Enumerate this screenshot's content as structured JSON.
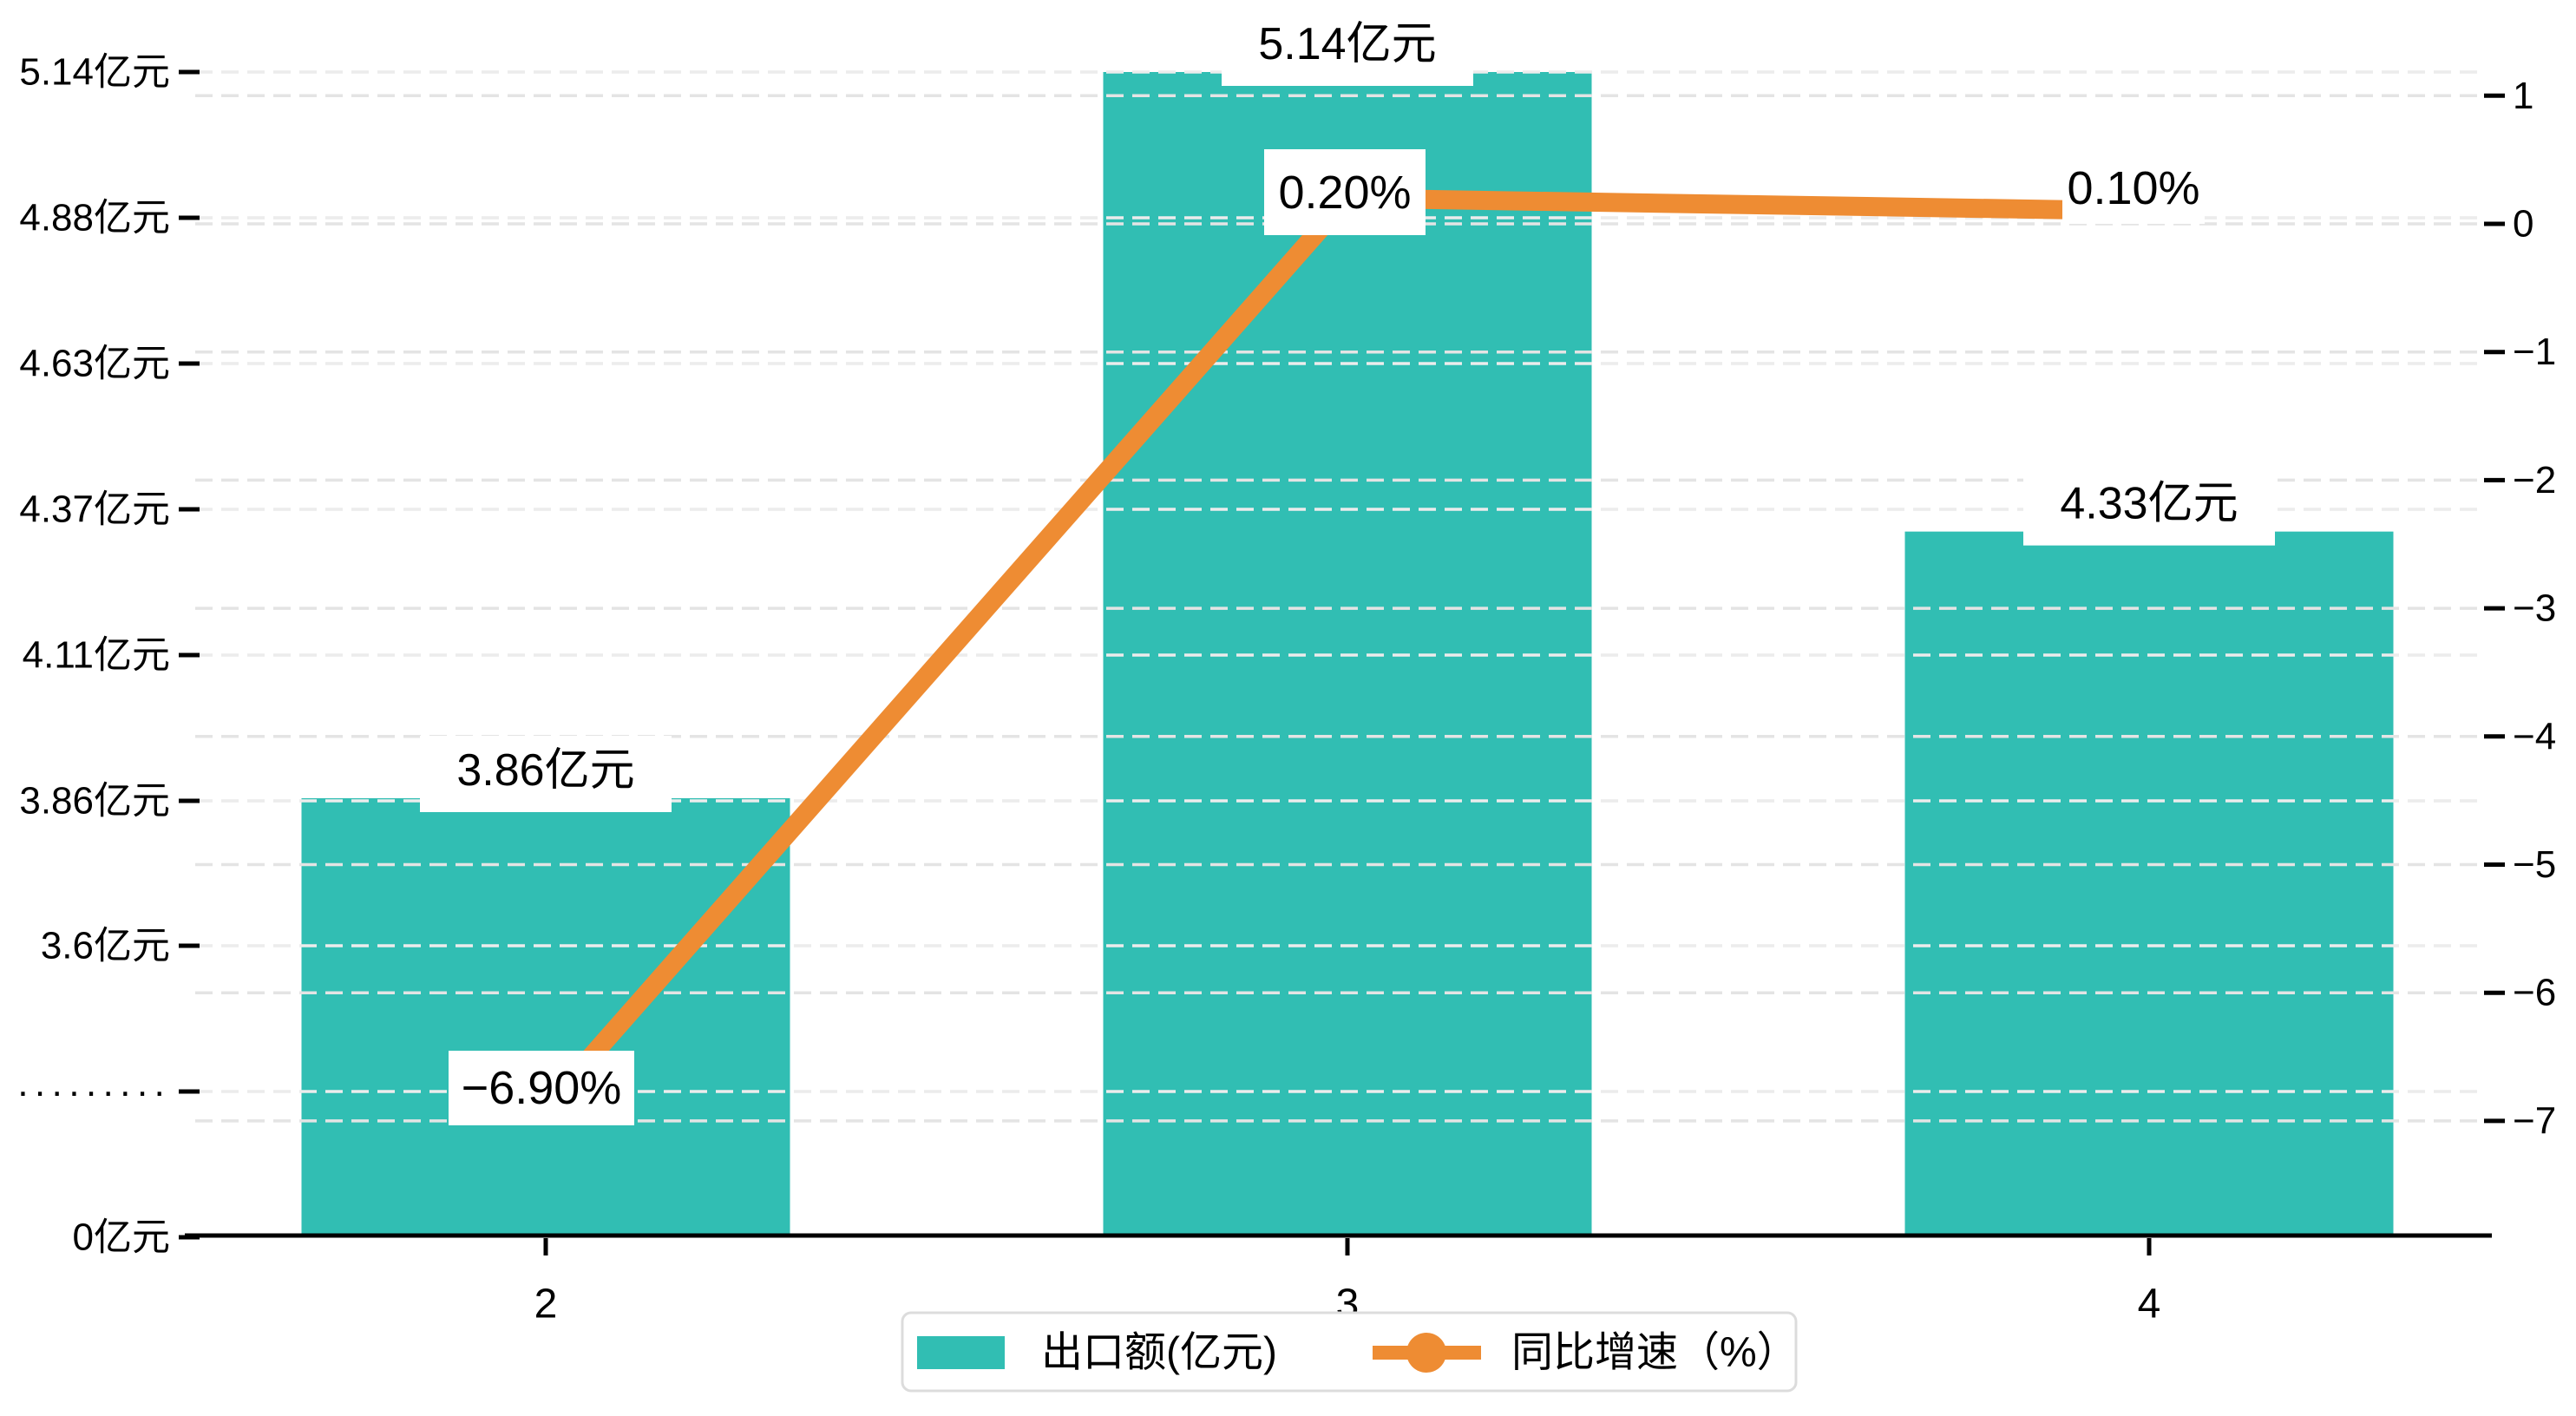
{
  "chart_data": {
    "type": "bar",
    "subtype": "bar-line-combo",
    "categories": [
      "2",
      "3",
      "4"
    ],
    "series": [
      {
        "name": "出口额(亿元)",
        "chart_type": "bar",
        "axis": "left",
        "values": [
          3.86,
          5.14,
          4.33
        ],
        "point_labels": [
          "3.86亿元",
          "5.14亿元",
          "4.33亿元"
        ],
        "color": "#31beb3"
      },
      {
        "name": "同比增速（%）",
        "chart_type": "line",
        "axis": "right",
        "values": [
          -6.9,
          0.2,
          0.1
        ],
        "point_labels": [
          "−6.90%",
          "0.20%",
          "0.10%"
        ],
        "color": "#ee8c33"
      }
    ],
    "left_axis": {
      "unit": "亿元",
      "has_break": true,
      "ticks": [
        "5.14亿元",
        "4.88亿元",
        "4.63亿元",
        "4.37亿元",
        "4.11亿元",
        "3.86亿元",
        "3.6亿元",
        "·········",
        "0亿元"
      ]
    },
    "right_axis": {
      "ticks": [
        "1",
        "0",
        "−1",
        "−2",
        "−3",
        "−4",
        "−5",
        "−6",
        "−7"
      ]
    },
    "legend": {
      "position": "bottom",
      "items": [
        "出口额(亿元)",
        "同比增速（%）"
      ]
    },
    "grid": true,
    "colors": {
      "bar": "#31beb3",
      "line": "#ee8c33",
      "grid_left": "#ececec",
      "grid_right": "#e4e4e4",
      "axis": "#000000",
      "label_bg": "#ffffff",
      "legend_border": "#dcdcdc",
      "legend_bg": "#ffffff"
    }
  }
}
